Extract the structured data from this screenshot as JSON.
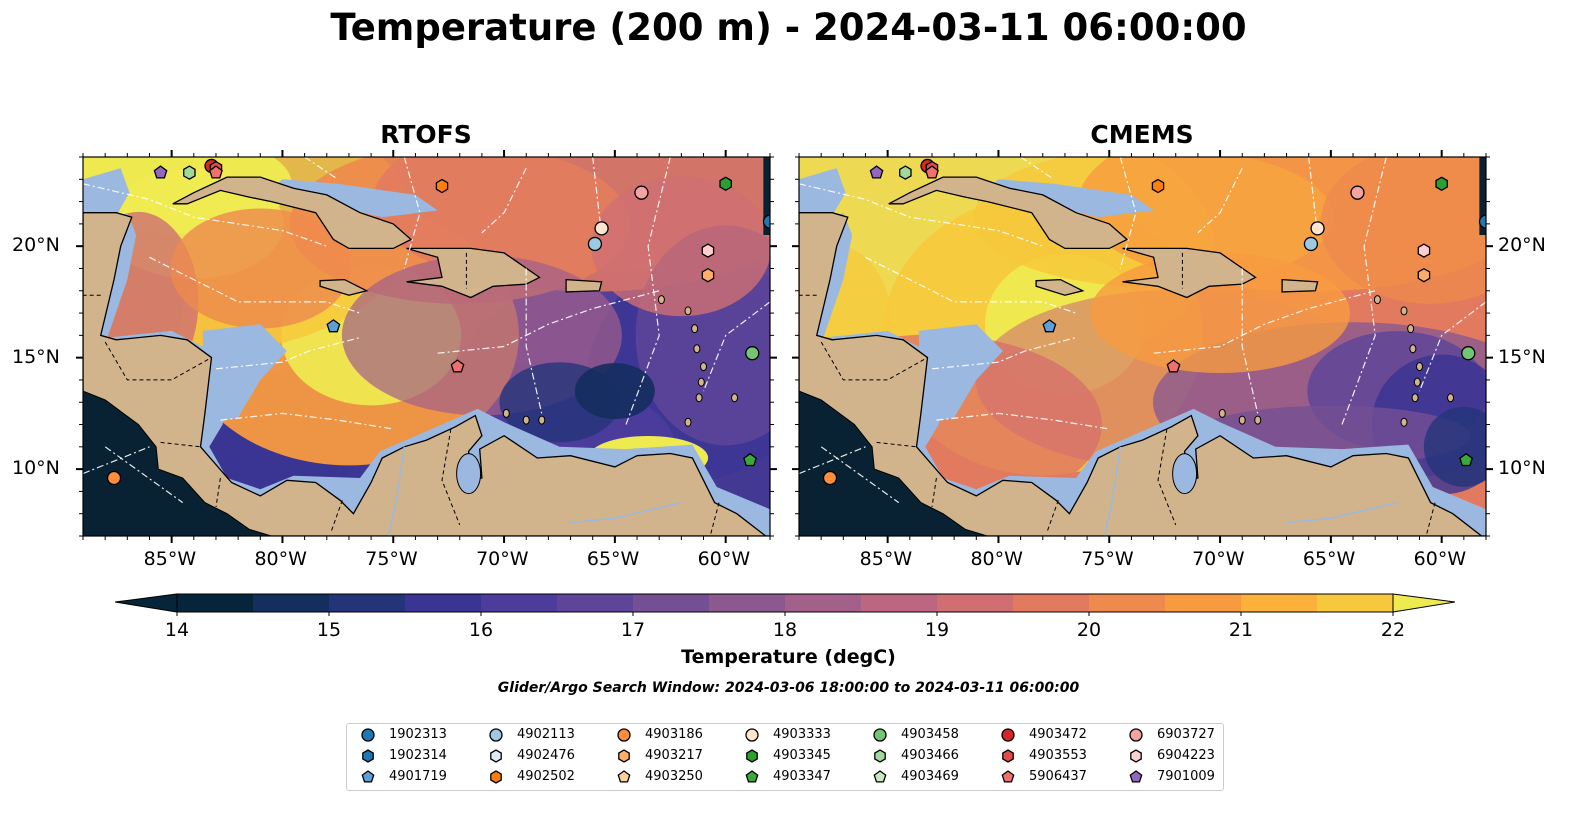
{
  "title": "Temperature (200 m) - 2024-03-11 06:00:00",
  "panels": [
    {
      "title": "RTOFS"
    },
    {
      "title": "CMEMS"
    }
  ],
  "map_axes": {
    "lon_range": [
      -89,
      -58
    ],
    "lat_range": [
      7,
      24
    ],
    "lon_ticks": [
      "85°W",
      "80°W",
      "75°W",
      "70°W",
      "65°W",
      "60°W"
    ],
    "lat_ticks": [
      "20°N",
      "15°N",
      "10°N"
    ]
  },
  "colorbar": {
    "title": "Temperature (degC)",
    "ticks": [
      "14",
      "15",
      "16",
      "17",
      "18",
      "19",
      "20",
      "21",
      "22"
    ],
    "range": [
      14,
      22
    ],
    "extend": "both",
    "colormap": "thermal"
  },
  "search_window": "Glider/Argo Search Window: 2024-03-06 18:00:00 to 2024-03-11 06:00:00",
  "colors": {
    "land": "#d2b48c",
    "shelf": "#9bb8e0",
    "deep_ocean": "#082233",
    "coastline": "#000000",
    "eez_boundaries": "#ffffff"
  },
  "legend": [
    {
      "id": "1902313",
      "marker": "circle",
      "color": "#1f77b4"
    },
    {
      "id": "1902314",
      "marker": "hexagon",
      "color": "#1f77b4"
    },
    {
      "id": "4901719",
      "marker": "pentagon",
      "color": "#5da0d8"
    },
    {
      "id": "4902113",
      "marker": "circle",
      "color": "#9ecae1"
    },
    {
      "id": "4902476",
      "marker": "hexagon",
      "color": "#deebf7"
    },
    {
      "id": "4902502",
      "marker": "hexagon",
      "color": "#ff7f0e"
    },
    {
      "id": "4903186",
      "marker": "circle",
      "color": "#fd8d3c"
    },
    {
      "id": "4903217",
      "marker": "hexagon",
      "color": "#fdae6b"
    },
    {
      "id": "4903250",
      "marker": "pentagon",
      "color": "#fdd0a2"
    },
    {
      "id": "4903333",
      "marker": "circle",
      "color": "#fde5d0"
    },
    {
      "id": "4903345",
      "marker": "hexagon",
      "color": "#2ca02c"
    },
    {
      "id": "4903347",
      "marker": "pentagon",
      "color": "#3aa83a"
    },
    {
      "id": "4903458",
      "marker": "circle",
      "color": "#74c476"
    },
    {
      "id": "4903466",
      "marker": "hexagon",
      "color": "#a1d99b"
    },
    {
      "id": "4903469",
      "marker": "pentagon",
      "color": "#c7e9c0"
    },
    {
      "id": "4903472",
      "marker": "circle",
      "color": "#d62728"
    },
    {
      "id": "4903553",
      "marker": "hexagon",
      "color": "#e34a4a"
    },
    {
      "id": "5906437",
      "marker": "pentagon",
      "color": "#f07070"
    },
    {
      "id": "6903727",
      "marker": "circle",
      "color": "#f4a3a3"
    },
    {
      "id": "6904223",
      "marker": "hexagon",
      "color": "#fcd0d0"
    },
    {
      "id": "7901009",
      "marker": "pentagon",
      "color": "#9467bd"
    }
  ],
  "floats": [
    {
      "id": "7901009",
      "lon": -85.5,
      "lat": 23.3
    },
    {
      "id": "4903466",
      "lon": -84.2,
      "lat": 23.3
    },
    {
      "id": "4903472",
      "lon": -83.2,
      "lat": 23.6
    },
    {
      "id": "4903553",
      "lon": -83.0,
      "lat": 23.5
    },
    {
      "id": "5906437",
      "lon": -83.0,
      "lat": 23.3
    },
    {
      "id": "4902502",
      "lon": -72.8,
      "lat": 22.7
    },
    {
      "id": "6903727",
      "lon": -63.8,
      "lat": 22.4
    },
    {
      "id": "4903345",
      "lon": -60.0,
      "lat": 22.8
    },
    {
      "id": "1902313",
      "lon": -58.0,
      "lat": 21.1
    },
    {
      "id": "4903333",
      "lon": -65.6,
      "lat": 20.8
    },
    {
      "id": "4902113",
      "lon": -65.9,
      "lat": 20.1
    },
    {
      "id": "6904223",
      "lon": -60.8,
      "lat": 19.8
    },
    {
      "id": "4903217",
      "lon": -60.8,
      "lat": 18.7
    },
    {
      "id": "4901719",
      "lon": -77.7,
      "lat": 16.4
    },
    {
      "id": "5906437",
      "lon": -72.1,
      "lat": 14.6
    },
    {
      "id": "4903458",
      "lon": -58.8,
      "lat": 15.2
    },
    {
      "id": "4903347",
      "lon": -58.9,
      "lat": 10.4
    },
    {
      "id": "4903186",
      "lon": -87.6,
      "lat": 9.6
    }
  ]
}
